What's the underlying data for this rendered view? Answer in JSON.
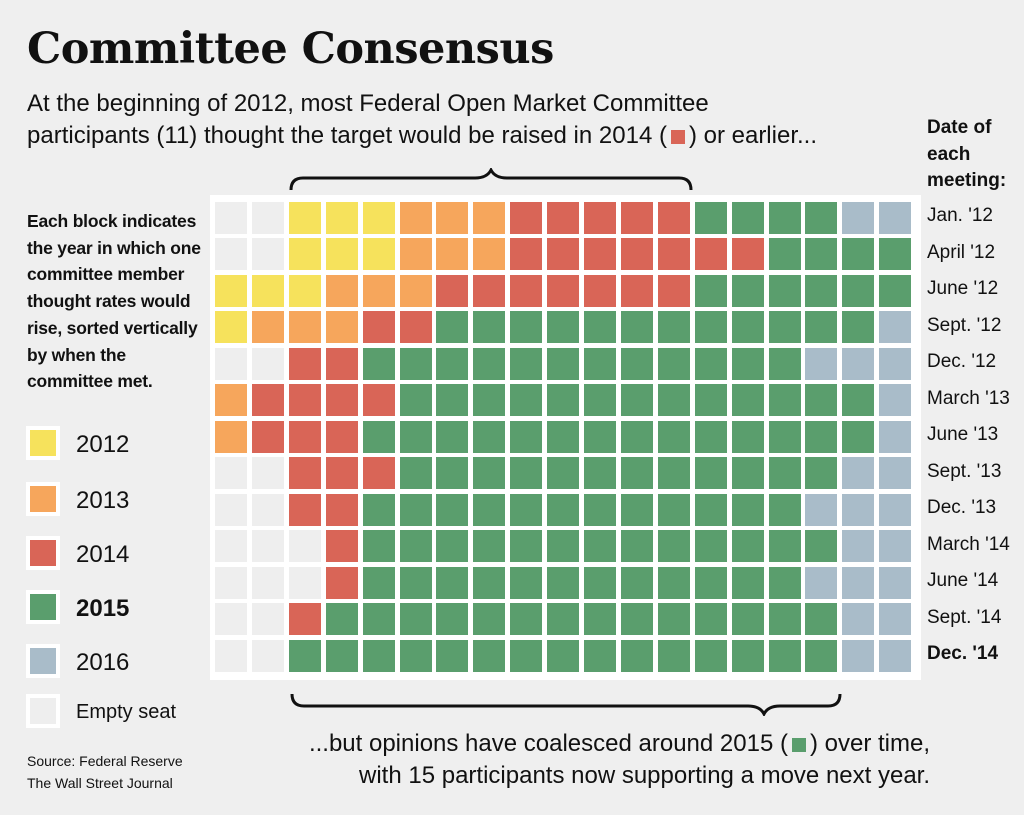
{
  "header": {
    "title": "Committee Consensus",
    "subtitle_line1": "At the beginning of 2012, most Federal Open Market Committee",
    "subtitle_line2_pre": "participants (11) thought the target would be raised in 2014 (",
    "subtitle_line2_post": ") or earlier..."
  },
  "description": "Each block indicates the year in which one committee member thought rates would rise, sorted vertically by when the committee met.",
  "legend": [
    {
      "key": "2012",
      "label": "2012",
      "color": "#f6e25c",
      "bold": false
    },
    {
      "key": "2013",
      "label": "2013",
      "color": "#f6a65c",
      "bold": false
    },
    {
      "key": "2014",
      "label": "2014",
      "color": "#d96557",
      "bold": false
    },
    {
      "key": "2015",
      "label": "2015",
      "color": "#5a9e6d",
      "bold": true
    },
    {
      "key": "2016",
      "label": "2016",
      "color": "#a9bcc9",
      "bold": false
    },
    {
      "key": "E",
      "label": "Empty seat",
      "color": "#eeeeee",
      "bold": false
    }
  ],
  "source": {
    "line1": "Source: Federal Reserve",
    "line2": "The Wall Street Journal"
  },
  "date_header": [
    "Date of",
    "each",
    "meeting:"
  ],
  "bottom_note": {
    "line1_pre": "...but opinions have coalesced around 2015 (",
    "line1_post": ") over time,",
    "line2": "with 15 participants now supporting a move next year."
  },
  "colors": {
    "2012": "#f6e25c",
    "2013": "#f6a65c",
    "2014": "#d96557",
    "2015": "#5a9e6d",
    "2016": "#a9bcc9",
    "E": "#eeeeee"
  },
  "chart_data": {
    "type": "heatmap",
    "columns": 19,
    "rows": [
      {
        "meeting": "Jan. '12",
        "bold": false,
        "cells": [
          "E",
          "E",
          "2012",
          "2012",
          "2012",
          "2013",
          "2013",
          "2013",
          "2014",
          "2014",
          "2014",
          "2014",
          "2014",
          "2015",
          "2015",
          "2015",
          "2015",
          "2016",
          "2016"
        ]
      },
      {
        "meeting": "April '12",
        "bold": false,
        "cells": [
          "E",
          "E",
          "2012",
          "2012",
          "2012",
          "2013",
          "2013",
          "2013",
          "2014",
          "2014",
          "2014",
          "2014",
          "2014",
          "2014",
          "2014",
          "2015",
          "2015",
          "2015",
          "2015"
        ]
      },
      {
        "meeting": "June '12",
        "bold": false,
        "cells": [
          "2012",
          "2012",
          "2012",
          "2013",
          "2013",
          "2013",
          "2014",
          "2014",
          "2014",
          "2014",
          "2014",
          "2014",
          "2014",
          "2015",
          "2015",
          "2015",
          "2015",
          "2015",
          "2015"
        ]
      },
      {
        "meeting": "Sept. '12",
        "bold": false,
        "cells": [
          "2012",
          "2013",
          "2013",
          "2013",
          "2014",
          "2014",
          "2015",
          "2015",
          "2015",
          "2015",
          "2015",
          "2015",
          "2015",
          "2015",
          "2015",
          "2015",
          "2015",
          "2015",
          "2016"
        ]
      },
      {
        "meeting": "Dec. '12",
        "bold": false,
        "cells": [
          "E",
          "E",
          "2014",
          "2014",
          "2015",
          "2015",
          "2015",
          "2015",
          "2015",
          "2015",
          "2015",
          "2015",
          "2015",
          "2015",
          "2015",
          "2015",
          "2016",
          "2016",
          "2016"
        ]
      },
      {
        "meeting": "March '13",
        "bold": false,
        "cells": [
          "2013",
          "2014",
          "2014",
          "2014",
          "2014",
          "2015",
          "2015",
          "2015",
          "2015",
          "2015",
          "2015",
          "2015",
          "2015",
          "2015",
          "2015",
          "2015",
          "2015",
          "2015",
          "2016"
        ]
      },
      {
        "meeting": "June '13",
        "bold": false,
        "cells": [
          "2013",
          "2014",
          "2014",
          "2014",
          "2015",
          "2015",
          "2015",
          "2015",
          "2015",
          "2015",
          "2015",
          "2015",
          "2015",
          "2015",
          "2015",
          "2015",
          "2015",
          "2015",
          "2016"
        ]
      },
      {
        "meeting": "Sept. '13",
        "bold": false,
        "cells": [
          "E",
          "E",
          "2014",
          "2014",
          "2014",
          "2015",
          "2015",
          "2015",
          "2015",
          "2015",
          "2015",
          "2015",
          "2015",
          "2015",
          "2015",
          "2015",
          "2015",
          "2016",
          "2016"
        ]
      },
      {
        "meeting": "Dec. '13",
        "bold": false,
        "cells": [
          "E",
          "E",
          "2014",
          "2014",
          "2015",
          "2015",
          "2015",
          "2015",
          "2015",
          "2015",
          "2015",
          "2015",
          "2015",
          "2015",
          "2015",
          "2015",
          "2016",
          "2016",
          "2016"
        ]
      },
      {
        "meeting": "March '14",
        "bold": false,
        "cells": [
          "E",
          "E",
          "E",
          "2014",
          "2015",
          "2015",
          "2015",
          "2015",
          "2015",
          "2015",
          "2015",
          "2015",
          "2015",
          "2015",
          "2015",
          "2015",
          "2015",
          "2016",
          "2016"
        ]
      },
      {
        "meeting": "June '14",
        "bold": false,
        "cells": [
          "E",
          "E",
          "E",
          "2014",
          "2015",
          "2015",
          "2015",
          "2015",
          "2015",
          "2015",
          "2015",
          "2015",
          "2015",
          "2015",
          "2015",
          "2015",
          "2016",
          "2016",
          "2016"
        ]
      },
      {
        "meeting": "Sept. '14",
        "bold": false,
        "cells": [
          "E",
          "E",
          "2014",
          "2015",
          "2015",
          "2015",
          "2015",
          "2015",
          "2015",
          "2015",
          "2015",
          "2015",
          "2015",
          "2015",
          "2015",
          "2015",
          "2015",
          "2016",
          "2016"
        ]
      },
      {
        "meeting": "Dec. '14",
        "bold": true,
        "cells": [
          "E",
          "E",
          "2015",
          "2015",
          "2015",
          "2015",
          "2015",
          "2015",
          "2015",
          "2015",
          "2015",
          "2015",
          "2015",
          "2015",
          "2015",
          "2015",
          "2015",
          "2016",
          "2016"
        ]
      }
    ]
  }
}
